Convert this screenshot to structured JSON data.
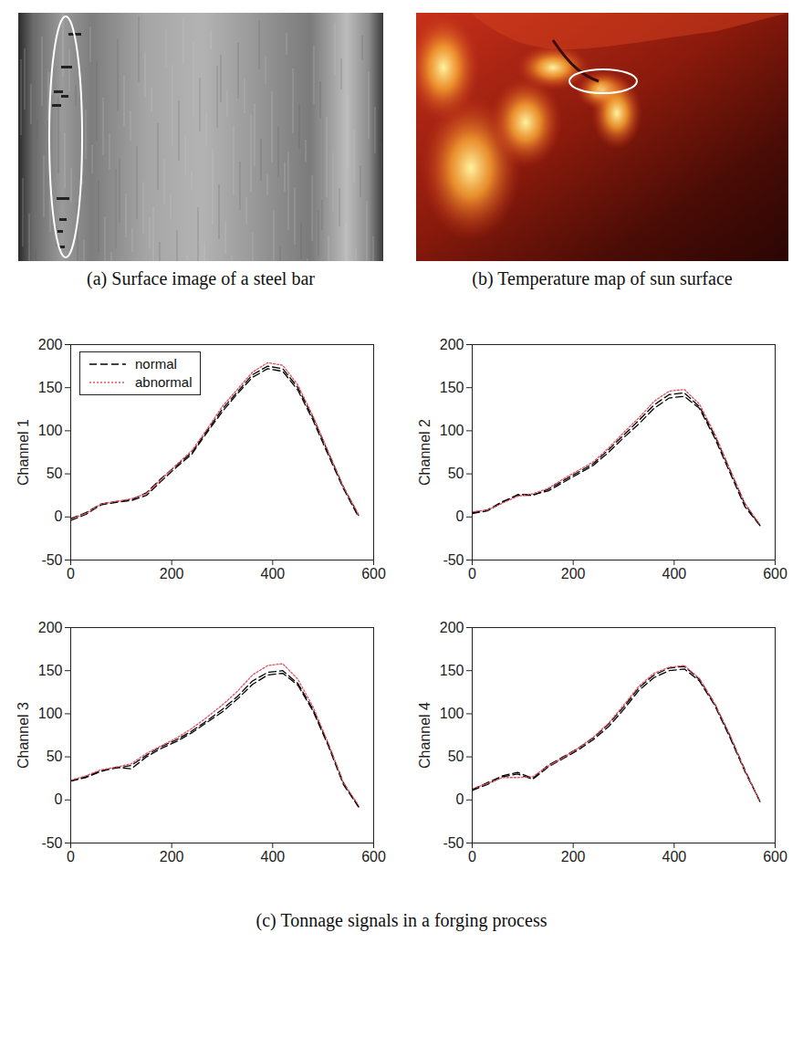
{
  "images": [
    {
      "caption": "(a) Surface image of a steel bar"
    },
    {
      "caption": "(b) Temperature map of sun surface"
    }
  ],
  "caption": "(c) Tonnage signals in a forging process",
  "chart_data": [
    {
      "type": "line",
      "y_label": "Channel 1",
      "legend": "upper left",
      "x": [
        0,
        30,
        60,
        90,
        120,
        150,
        180,
        210,
        240,
        270,
        300,
        330,
        360,
        390,
        420,
        450,
        480,
        510,
        540,
        570
      ],
      "xlim": [
        0,
        600
      ],
      "xticks": [
        0,
        200,
        400,
        600
      ],
      "ylim": [
        -50,
        200
      ],
      "yticks": [
        -50,
        0,
        50,
        100,
        150,
        200
      ],
      "series": [
        {
          "name": "normal",
          "color": "#000000",
          "line_style": "dashed",
          "values": [
            -2,
            5,
            15,
            18,
            20,
            28,
            45,
            60,
            75,
            100,
            125,
            145,
            165,
            175,
            172,
            150,
            115,
            75,
            35,
            2
          ]
        },
        {
          "name": "normal",
          "color": "#000000",
          "line_style": "dashed",
          "values": [
            -4,
            3,
            14,
            17,
            19,
            25,
            42,
            58,
            73,
            98,
            122,
            143,
            162,
            172,
            169,
            147,
            112,
            72,
            33,
            0
          ]
        },
        {
          "name": "abnormal",
          "color": "#e0505f",
          "line_style": "dotted",
          "values": [
            -3,
            4,
            15,
            18,
            21,
            27,
            44,
            61,
            77,
            102,
            128,
            148,
            168,
            179,
            176,
            153,
            117,
            76,
            35,
            3
          ]
        }
      ]
    },
    {
      "type": "line",
      "y_label": "Channel 2",
      "x": [
        0,
        30,
        60,
        90,
        120,
        150,
        180,
        210,
        240,
        270,
        300,
        330,
        360,
        390,
        420,
        450,
        480,
        510,
        540,
        570
      ],
      "xlim": [
        0,
        600
      ],
      "xticks": [
        0,
        200,
        400,
        600
      ],
      "ylim": [
        -50,
        200
      ],
      "yticks": [
        -50,
        0,
        50,
        100,
        150,
        200
      ],
      "series": [
        {
          "name": "normal",
          "color": "#000000",
          "line_style": "dashed",
          "values": [
            5,
            8,
            18,
            25,
            25,
            32,
            42,
            52,
            62,
            78,
            95,
            112,
            130,
            142,
            144,
            128,
            95,
            55,
            15,
            -10
          ]
        },
        {
          "name": "normal",
          "color": "#000000",
          "line_style": "dashed",
          "values": [
            4,
            7,
            17,
            26,
            26,
            30,
            40,
            50,
            60,
            75,
            92,
            108,
            126,
            138,
            140,
            126,
            92,
            52,
            12,
            -10
          ]
        },
        {
          "name": "abnormal",
          "color": "#e0505f",
          "line_style": "dotted",
          "values": [
            6,
            8,
            16,
            24,
            27,
            33,
            44,
            54,
            64,
            80,
            98,
            115,
            134,
            146,
            148,
            131,
            97,
            56,
            16,
            -9
          ]
        }
      ]
    },
    {
      "type": "line",
      "y_label": "Channel 3",
      "x": [
        0,
        30,
        60,
        90,
        120,
        150,
        180,
        210,
        240,
        270,
        300,
        330,
        360,
        390,
        420,
        450,
        480,
        510,
        540,
        570
      ],
      "xlim": [
        0,
        600
      ],
      "xticks": [
        0,
        200,
        400,
        600
      ],
      "ylim": [
        -50,
        200
      ],
      "yticks": [
        -50,
        0,
        50,
        100,
        150,
        200
      ],
      "series": [
        {
          "name": "normal",
          "color": "#000000",
          "line_style": "dashed",
          "values": [
            22,
            27,
            34,
            37,
            40,
            52,
            62,
            70,
            80,
            92,
            105,
            120,
            138,
            148,
            150,
            135,
            105,
            65,
            20,
            -8
          ]
        },
        {
          "name": "normal",
          "color": "#000000",
          "line_style": "dashed",
          "values": [
            22,
            26,
            33,
            38,
            36,
            50,
            60,
            68,
            78,
            90,
            102,
            117,
            134,
            145,
            147,
            133,
            103,
            63,
            18,
            -8
          ]
        },
        {
          "name": "abnormal",
          "color": "#e0505f",
          "line_style": "dotted",
          "values": [
            23,
            28,
            35,
            38,
            42,
            54,
            63,
            72,
            83,
            96,
            110,
            126,
            145,
            156,
            158,
            140,
            108,
            66,
            20,
            -6
          ]
        }
      ]
    },
    {
      "type": "line",
      "y_label": "Channel 4",
      "x": [
        0,
        30,
        60,
        90,
        120,
        150,
        180,
        210,
        240,
        270,
        300,
        330,
        360,
        390,
        420,
        450,
        480,
        510,
        540,
        570
      ],
      "xlim": [
        0,
        600
      ],
      "xticks": [
        0,
        200,
        400,
        600
      ],
      "ylim": [
        -50,
        200
      ],
      "yticks": [
        -50,
        0,
        50,
        100,
        150,
        200
      ],
      "series": [
        {
          "name": "normal",
          "color": "#000000",
          "line_style": "dashed",
          "values": [
            12,
            20,
            28,
            32,
            25,
            40,
            50,
            60,
            72,
            88,
            108,
            130,
            145,
            153,
            155,
            140,
            112,
            75,
            35,
            -2
          ]
        },
        {
          "name": "normal",
          "color": "#000000",
          "line_style": "dashed",
          "values": [
            11,
            18,
            27,
            30,
            24,
            38,
            48,
            58,
            70,
            85,
            105,
            127,
            142,
            150,
            152,
            138,
            110,
            73,
            33,
            -2
          ]
        },
        {
          "name": "abnormal",
          "color": "#e0505f",
          "line_style": "dotted",
          "values": [
            13,
            19,
            26,
            26,
            27,
            39,
            49,
            60,
            73,
            89,
            110,
            132,
            147,
            154,
            156,
            141,
            112,
            76,
            34,
            -2
          ]
        }
      ]
    }
  ]
}
